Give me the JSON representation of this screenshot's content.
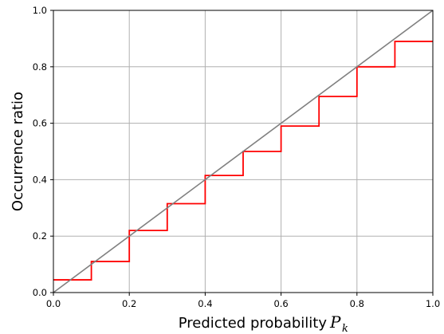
{
  "chart_data": {
    "type": "line",
    "xlabel": "Predicted probability",
    "xlabel_symbol": "P",
    "xlabel_subscript": "k",
    "ylabel": "Occurrence ratio",
    "xlim": [
      0,
      1
    ],
    "ylim": [
      0,
      1
    ],
    "grid": true,
    "x_ticks": [
      "0.0",
      "0.2",
      "0.4",
      "0.6",
      "0.8",
      "1.0"
    ],
    "y_ticks": [
      "0.0",
      "0.2",
      "0.4",
      "0.6",
      "0.8",
      "1.0"
    ],
    "series": [
      {
        "style": "step",
        "color": "#ff0000",
        "bin_edges": [
          0.0,
          0.1,
          0.2,
          0.3,
          0.4,
          0.5,
          0.6,
          0.7,
          0.8,
          0.9,
          1.0
        ],
        "values": [
          0.045,
          0.11,
          0.22,
          0.315,
          0.415,
          0.5,
          0.59,
          0.695,
          0.8,
          0.89
        ]
      },
      {
        "style": "diagonal",
        "color": "#808080",
        "x": [
          0,
          1
        ],
        "y": [
          0,
          1
        ]
      }
    ],
    "grid_color": "#b0b0b0"
  }
}
